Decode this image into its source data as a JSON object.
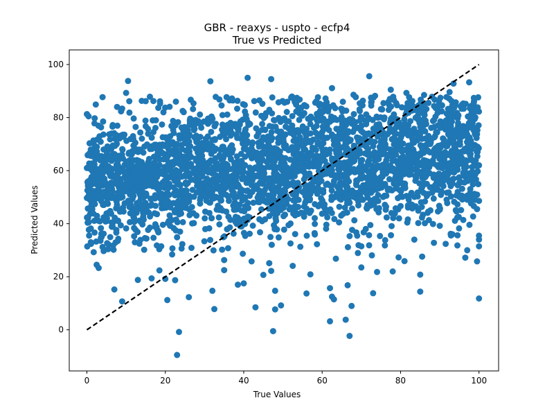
{
  "chart_data": {
    "type": "scatter",
    "title": "GBR - reaxys - uspto - ecfp4",
    "subtitle": "True vs Predicted",
    "xlabel": "True Values",
    "ylabel": "Predicted Values",
    "xlim": [
      -4.5,
      105
    ],
    "ylim": [
      -15.5,
      105.5
    ],
    "xticks": [
      "0",
      "20",
      "40",
      "60",
      "80",
      "100"
    ],
    "yticks": [
      "0",
      "20",
      "40",
      "60",
      "80",
      "100"
    ],
    "grid": false,
    "legend": "none",
    "point_color": "#1f77b4",
    "reference_line": {
      "label": "",
      "from": [
        0,
        0
      ],
      "to": [
        100,
        100
      ],
      "color": "#000000",
      "style": "dashed"
    },
    "points_summary": {
      "count_approx": 3000,
      "x_range": [
        0,
        100
      ],
      "y_center_at_x0": 55,
      "y_center_at_x100": 67,
      "y_spread_sd": 12,
      "dense_band": [
        40,
        80
      ]
    },
    "outliers": [
      {
        "x": 23,
        "y": -9.5
      },
      {
        "x": 23.5,
        "y": -0.8
      },
      {
        "x": 47.5,
        "y": -0.5
      },
      {
        "x": 67,
        "y": -2.3
      },
      {
        "x": 66,
        "y": 3.8
      },
      {
        "x": 62,
        "y": 3.2
      },
      {
        "x": 67.5,
        "y": 9
      },
      {
        "x": 48,
        "y": 7.7
      },
      {
        "x": 49.5,
        "y": 9.2
      },
      {
        "x": 32.5,
        "y": 7.8
      },
      {
        "x": 43,
        "y": 8.5
      },
      {
        "x": 9,
        "y": 10.7
      },
      {
        "x": 20.5,
        "y": 11.2
      },
      {
        "x": 26,
        "y": 12.3
      },
      {
        "x": 100,
        "y": 11.8
      },
      {
        "x": 63,
        "y": 11.5
      },
      {
        "x": 62.5,
        "y": 12.5
      },
      {
        "x": 56,
        "y": 13.7
      },
      {
        "x": 73,
        "y": 13.8
      },
      {
        "x": 48,
        "y": 14.7
      },
      {
        "x": 32,
        "y": 14.7
      },
      {
        "x": 85,
        "y": 14.4
      },
      {
        "x": 62,
        "y": 15.7
      },
      {
        "x": 7,
        "y": 15.2
      },
      {
        "x": 66.5,
        "y": 16.8
      },
      {
        "x": 38.5,
        "y": 17
      },
      {
        "x": 40,
        "y": 17.5
      },
      {
        "x": 22.5,
        "y": 18.7
      },
      {
        "x": 13,
        "y": 18.8
      },
      {
        "x": 16.5,
        "y": 19.4
      },
      {
        "x": 20,
        "y": 19.2
      },
      {
        "x": 45,
        "y": 20.7
      },
      {
        "x": 57,
        "y": 20.9
      },
      {
        "x": 74,
        "y": 21.8
      },
      {
        "x": 85,
        "y": 20.8
      },
      {
        "x": 35,
        "y": 22.5
      },
      {
        "x": 47,
        "y": 22.2
      },
      {
        "x": 70,
        "y": 23.5
      },
      {
        "x": 78,
        "y": 22
      },
      {
        "x": 3,
        "y": 23.3
      },
      {
        "x": 18.5,
        "y": 22.4
      },
      {
        "x": 52.5,
        "y": 24.1
      },
      {
        "x": 35,
        "y": 26.3
      },
      {
        "x": 42,
        "y": 25.8
      },
      {
        "x": 46.5,
        "y": 25.1
      },
      {
        "x": 81,
        "y": 25.9
      },
      {
        "x": 85.5,
        "y": 27.6
      },
      {
        "x": 99.5,
        "y": 25.8
      },
      {
        "x": 96.5,
        "y": 27.2
      },
      {
        "x": 79.5,
        "y": 27.3
      },
      {
        "x": 63.5,
        "y": 26.8
      },
      {
        "x": 4,
        "y": 31.2
      },
      {
        "x": 2.5,
        "y": 24.5
      },
      {
        "x": 5.5,
        "y": 32.2
      },
      {
        "x": 1,
        "y": 33
      },
      {
        "x": 10.5,
        "y": 93.8
      },
      {
        "x": 10,
        "y": 89.3
      },
      {
        "x": 4,
        "y": 87.7
      },
      {
        "x": 0,
        "y": 81.3
      },
      {
        "x": 9,
        "y": 83.4
      },
      {
        "x": 14,
        "y": 86.3
      },
      {
        "x": 15,
        "y": 86.2
      },
      {
        "x": 31.5,
        "y": 93.7
      },
      {
        "x": 26.5,
        "y": 86.7
      },
      {
        "x": 41,
        "y": 95
      },
      {
        "x": 47,
        "y": 94.5
      },
      {
        "x": 72,
        "y": 95.6
      },
      {
        "x": 62.5,
        "y": 91.1
      },
      {
        "x": 77.5,
        "y": 90.5
      },
      {
        "x": 73.5,
        "y": 88.2
      },
      {
        "x": 68,
        "y": 88.6
      },
      {
        "x": 93.5,
        "y": 92.8
      },
      {
        "x": 97.5,
        "y": 93.3
      },
      {
        "x": 92.5,
        "y": 89.6
      },
      {
        "x": 86,
        "y": 88.5
      },
      {
        "x": 81.5,
        "y": 89.3
      },
      {
        "x": 53,
        "y": 86.2
      },
      {
        "x": 37,
        "y": 87.2
      },
      {
        "x": 44,
        "y": 86.5
      },
      {
        "x": 0,
        "y": 61
      },
      {
        "x": 0,
        "y": 49.7
      },
      {
        "x": 0.5,
        "y": 52.4
      },
      {
        "x": 0.5,
        "y": 37.7
      },
      {
        "x": 1,
        "y": 38.2
      },
      {
        "x": 100,
        "y": 35.5
      },
      {
        "x": 100,
        "y": 34
      },
      {
        "x": 100,
        "y": 31.5
      },
      {
        "x": 97,
        "y": 30
      },
      {
        "x": 94.5,
        "y": 31.8
      },
      {
        "x": 88.5,
        "y": 32.8
      },
      {
        "x": 91.5,
        "y": 32.4
      },
      {
        "x": 83.5,
        "y": 34
      },
      {
        "x": 76,
        "y": 31.8
      },
      {
        "x": 70,
        "y": 31.5
      },
      {
        "x": 100,
        "y": 48.6
      },
      {
        "x": 97.5,
        "y": 50.3
      },
      {
        "x": 99.5,
        "y": 45.5
      },
      {
        "x": 98.5,
        "y": 42.7
      }
    ]
  }
}
